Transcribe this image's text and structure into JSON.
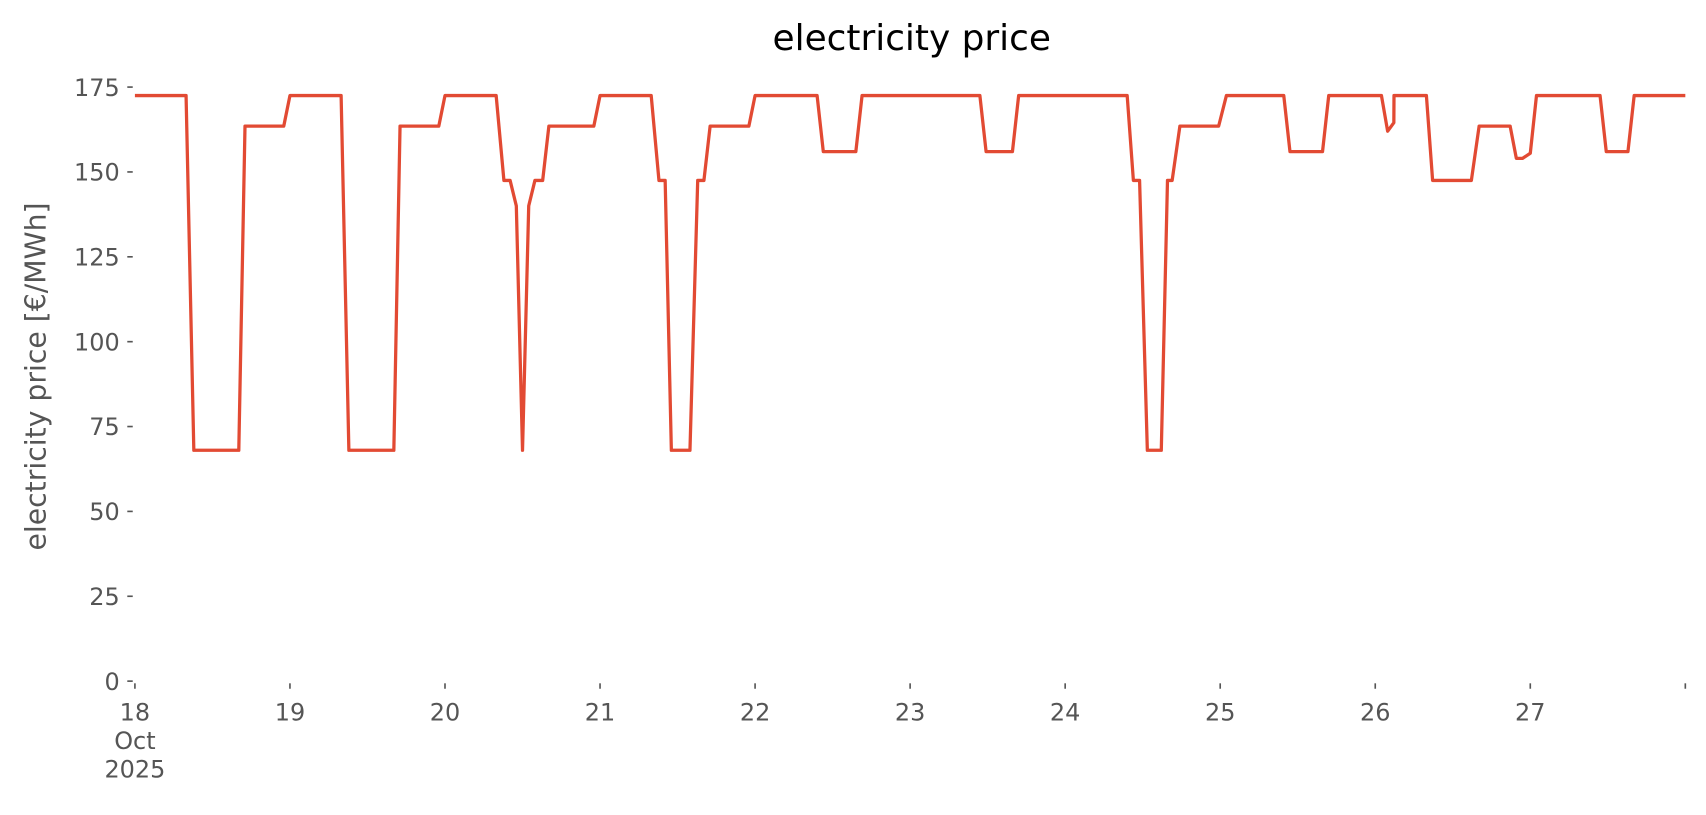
{
  "chart_data": {
    "type": "line",
    "title": "electricity price",
    "ylabel": "electricity price [€/MWh]",
    "xlim": [
      18,
      28
    ],
    "ylim": [
      0,
      175
    ],
    "xticks": [
      {
        "value": 18,
        "label": "18\nOct\n2025"
      },
      {
        "value": 19,
        "label": "19"
      },
      {
        "value": 20,
        "label": "20"
      },
      {
        "value": 21,
        "label": "21"
      },
      {
        "value": 22,
        "label": "22"
      },
      {
        "value": 23,
        "label": "23"
      },
      {
        "value": 24,
        "label": "24"
      },
      {
        "value": 25,
        "label": "25"
      },
      {
        "value": 26,
        "label": "26"
      },
      {
        "value": 27,
        "label": "27"
      },
      {
        "value": 28,
        "label": null
      }
    ],
    "yticks": [
      0,
      25,
      50,
      75,
      100,
      125,
      150,
      175
    ],
    "grid": false,
    "series": [
      {
        "name": "electricity price",
        "color": "#E24A33",
        "x": [
          18.0,
          18.33,
          18.38,
          18.67,
          18.71,
          18.96,
          19.0,
          19.33,
          19.38,
          19.67,
          19.71,
          19.96,
          20.0,
          20.33,
          20.38,
          20.42,
          20.46,
          20.5,
          20.54,
          20.58,
          20.63,
          20.67,
          20.96,
          21.0,
          21.33,
          21.38,
          21.42,
          21.46,
          21.58,
          21.63,
          21.67,
          21.71,
          21.96,
          22.0,
          22.4,
          22.44,
          22.65,
          22.69,
          23.45,
          23.49,
          23.66,
          23.7,
          24.4,
          24.44,
          24.48,
          24.53,
          24.62,
          24.66,
          24.69,
          24.74,
          24.99,
          25.04,
          25.41,
          25.45,
          25.66,
          25.7,
          26.04,
          26.08,
          26.12,
          26.121,
          26.33,
          26.37,
          26.62,
          26.67,
          26.87,
          26.91,
          26.95,
          27.0,
          27.04,
          27.45,
          27.49,
          27.63,
          27.67,
          28.0
        ],
        "values": [
          172.5,
          172.5,
          68,
          68,
          163.5,
          163.5,
          172.5,
          172.5,
          68,
          68,
          163.5,
          163.5,
          172.5,
          172.5,
          147.5,
          147.5,
          140,
          68,
          140,
          147.5,
          147.5,
          163.5,
          163.5,
          172.5,
          172.5,
          147.5,
          147.5,
          68,
          68,
          147.5,
          147.5,
          163.5,
          163.5,
          172.5,
          172.5,
          156,
          156,
          172.5,
          172.5,
          156,
          156,
          172.5,
          172.5,
          147.5,
          147.5,
          68,
          68,
          147.5,
          147.5,
          163.5,
          163.5,
          172.5,
          172.5,
          156,
          156,
          172.5,
          172.5,
          162,
          164.5,
          172.5,
          172.5,
          147.5,
          147.5,
          163.5,
          163.5,
          154,
          154,
          155.5,
          172.5,
          172.5,
          156,
          156,
          172.5,
          172.5
        ]
      }
    ]
  }
}
